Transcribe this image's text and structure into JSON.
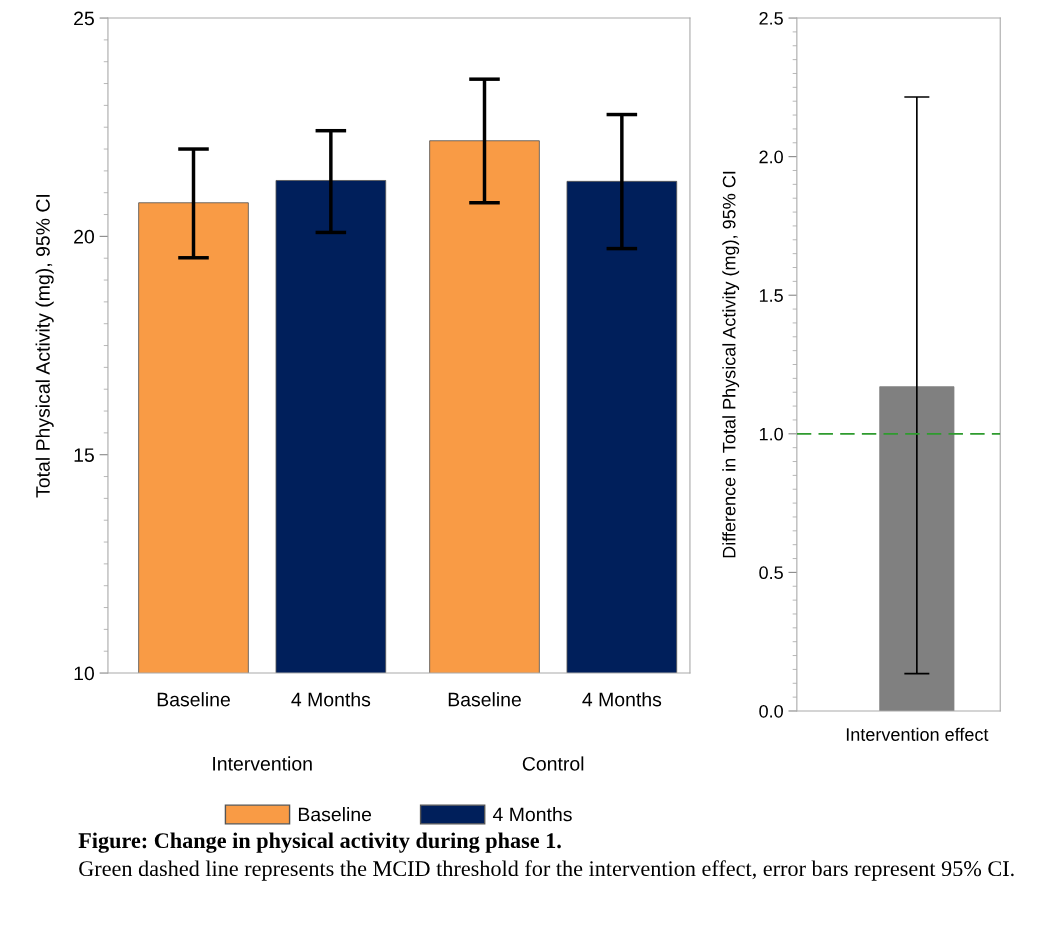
{
  "chart_data": [
    {
      "type": "bar",
      "categories": [
        "Intervention",
        "Control"
      ],
      "ylabel": "Total Physical Activity (mg), 95% CI",
      "ylim": [
        10,
        25
      ],
      "yticks": [
        10,
        15,
        20,
        25
      ],
      "legend": "bottom",
      "grid": false,
      "series": [
        {
          "name": "Baseline",
          "color": "#f99b45",
          "values": [
            20.77,
            22.19
          ],
          "errors": [
            [
              19.51,
              22.0
            ],
            [
              20.77,
              23.6
            ]
          ]
        },
        {
          "name": "4 Months",
          "color": "#001f5b",
          "values": [
            21.28,
            21.26
          ],
          "errors": [
            [
              20.09,
              22.42
            ],
            [
              19.72,
              22.79
            ]
          ]
        }
      ],
      "annotations": [
        "Figure: Change in physical activity during phase 1.",
        "Green dashed line represents the MCID threshold for the intervention effect, error bars represent 95% CI."
      ]
    },
    {
      "type": "bar",
      "categories": [
        "Intervention effect"
      ],
      "ylabel": "Difference in Total Physical Activity (mg), 95% CI",
      "ylim": [
        0,
        2.5
      ],
      "yticks": [
        {
          "value": 0,
          "label": "0.0"
        },
        0.5,
        {
          "value": 1,
          "label": "1.0"
        },
        1.5,
        {
          "value": 2,
          "label": "2.0"
        },
        2.5
      ],
      "grid": false,
      "series": [
        {
          "color": "#808080",
          "values": [
            1.17
          ],
          "errors": [
            [
              0.135,
              2.215
            ]
          ]
        }
      ],
      "ref_lines": [
        {
          "axis": "y",
          "value": 1.0,
          "color": "#2e9b2e",
          "line_style": "dashed"
        }
      ]
    }
  ]
}
